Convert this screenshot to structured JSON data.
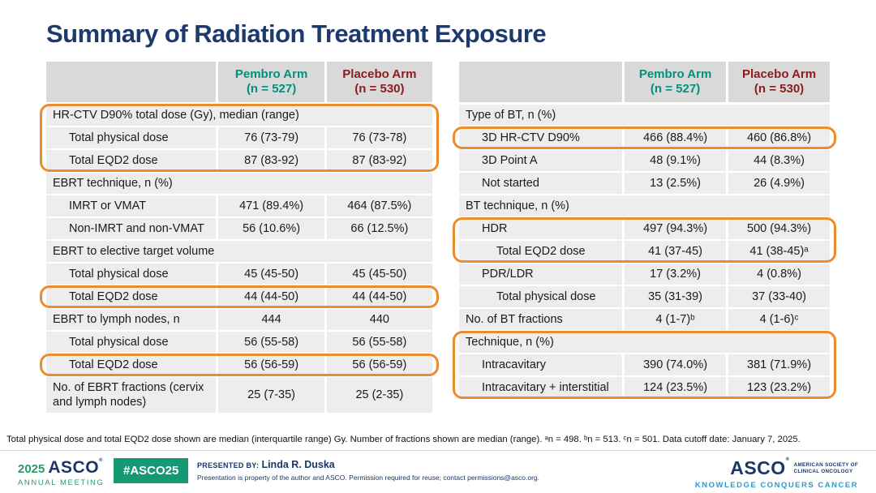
{
  "title": "Summary of Radiation Treatment Exposure",
  "accent_orange": "#eb8a2f",
  "columns": {
    "pembro": {
      "name": "Pembro Arm",
      "n": "(n = 527)",
      "color": "#00917e"
    },
    "placebo": {
      "name": "Placebo Arm",
      "n": "(n = 530)",
      "color": "#8c1b1b"
    }
  },
  "tables": [
    {
      "name": "ebrt-summary",
      "groups": [
        {
          "highlight": true,
          "rows": [
            {
              "label": "HR-CTV D90% total dose (Gy), median (range)"
            },
            {
              "label": "Total physical dose",
              "indent": 1,
              "values": [
                "76 (73-79)",
                "76 (73-78)"
              ]
            },
            {
              "label": "Total EQD2 dose",
              "indent": 1,
              "values": [
                "87 (83-92)",
                "87 (83-92)"
              ]
            }
          ]
        },
        {
          "highlight": false,
          "rows": [
            {
              "label": "EBRT technique, n (%)"
            },
            {
              "label": "IMRT or VMAT",
              "indent": 1,
              "values": [
                "471 (89.4%)",
                "464 (87.5%)"
              ]
            },
            {
              "label": "Non-IMRT and non-VMAT",
              "indent": 1,
              "values": [
                "56 (10.6%)",
                "66 (12.5%)"
              ]
            },
            {
              "label": "EBRT to elective target volume"
            },
            {
              "label": "Total physical dose",
              "indent": 1,
              "values": [
                "45 (45-50)",
                "45 (45-50)"
              ]
            }
          ]
        },
        {
          "highlight": true,
          "rows": [
            {
              "label": "Total EQD2 dose",
              "indent": 1,
              "values": [
                "44 (44-50)",
                "44 (44-50)"
              ]
            }
          ]
        },
        {
          "highlight": false,
          "rows": [
            {
              "label": "EBRT to lymph nodes, n",
              "indent": 0,
              "values": [
                "444",
                "440"
              ]
            },
            {
              "label": "Total physical dose",
              "indent": 1,
              "values": [
                "56 (55-58)",
                "56 (55-58)"
              ]
            }
          ]
        },
        {
          "highlight": true,
          "rows": [
            {
              "label": "Total EQD2 dose",
              "indent": 1,
              "values": [
                "56 (56-59)",
                "56 (56-59)"
              ]
            }
          ]
        },
        {
          "highlight": false,
          "rows": [
            {
              "label": "No. of EBRT fractions (cervix and lymph nodes)",
              "indent": 0,
              "values": [
                "25 (7-35)",
                "25 (2-35)"
              ]
            }
          ]
        }
      ]
    },
    {
      "name": "bt-summary",
      "groups": [
        {
          "highlight": false,
          "rows": [
            {
              "label": "Type of BT, n (%)"
            }
          ]
        },
        {
          "highlight": true,
          "rows": [
            {
              "label": "3D HR-CTV D90%",
              "indent": 1,
              "values": [
                "466 (88.4%)",
                "460 (86.8%)"
              ]
            }
          ]
        },
        {
          "highlight": false,
          "rows": [
            {
              "label": "3D Point A",
              "indent": 1,
              "values": [
                "48 (9.1%)",
                "44 (8.3%)"
              ]
            },
            {
              "label": "Not started",
              "indent": 1,
              "values": [
                "13 (2.5%)",
                "26 (4.9%)"
              ]
            },
            {
              "label": "BT technique, n (%)"
            }
          ]
        },
        {
          "highlight": true,
          "rows": [
            {
              "label": "HDR",
              "indent": 1,
              "values": [
                "497 (94.3%)",
                "500 (94.3%)"
              ]
            },
            {
              "label": "Total EQD2 dose",
              "indent": 2,
              "values": [
                "41 (37-45)",
                "41 (38-45)ᵃ"
              ]
            }
          ]
        },
        {
          "highlight": false,
          "rows": [
            {
              "label": "PDR/LDR",
              "indent": 1,
              "values": [
                "17 (3.2%)",
                "4 (0.8%)"
              ]
            },
            {
              "label": "Total physical dose",
              "indent": 2,
              "values": [
                "35 (31-39)",
                "37 (33-40)"
              ]
            },
            {
              "label": "No. of BT fractions",
              "indent": 0,
              "values": [
                "4 (1-7)ᵇ",
                "4 (1-6)ᶜ"
              ]
            }
          ]
        },
        {
          "highlight": true,
          "rows": [
            {
              "label": "Technique, n (%)"
            },
            {
              "label": "Intracavitary",
              "indent": 1,
              "values": [
                "390 (74.0%)",
                "381 (71.9%)"
              ]
            },
            {
              "label": "Intracavitary + interstitial",
              "indent": 1,
              "values": [
                "124 (23.5%)",
                "123 (23.2%)"
              ]
            }
          ]
        }
      ]
    }
  ],
  "footnote": "Total physical dose and total EQD2 dose shown are median (interquartile range) Gy. Number of fractions shown are median (range). ᵃn = 498. ᵇn = 513. ᶜn = 501. Data cutoff date: January 7, 2025.",
  "footer": {
    "year": "2025",
    "asco_wordmark": "ASCO",
    "asco_mark": "®",
    "meeting": "ANNUAL MEETING",
    "hashtag": "#ASCO25",
    "presented_by_label": "PRESENTED BY:",
    "presenter": "Linda R. Duska",
    "disclaimer": "Presentation is property of the author and ASCO. Permission required for reuse; contact permissions@asco.org.",
    "society_logo": "ASCO",
    "society_mark": "®",
    "society_line1": "AMERICAN SOCIETY OF",
    "society_line2": "CLINICAL ONCOLOGY",
    "tagline": "KNOWLEDGE CONQUERS CANCER"
  }
}
